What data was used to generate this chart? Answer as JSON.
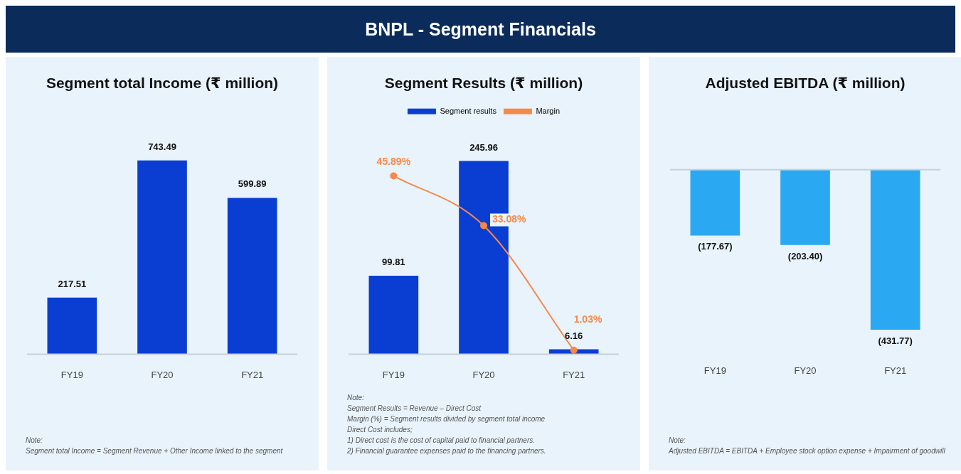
{
  "chart_data": [
    {
      "type": "other",
      "title": "BNPL - Segment Financials"
    },
    {
      "type": "bar",
      "title": "Segment total Income (₹ million)",
      "categories": [
        "FY19",
        "FY20",
        "FY21"
      ],
      "values": [
        217.51,
        743.49,
        599.89
      ],
      "color": "#0a3ed2",
      "data_labels": true,
      "legend": false,
      "annotations": [
        "Note:",
        "Segment total Income =  Segment Revenue + Other Income linked to the segment"
      ]
    },
    {
      "type": "bar",
      "title": "Segment Results (₹ million)",
      "categories": [
        "FY19",
        "FY20",
        "FY21"
      ],
      "legend": "top",
      "series": [
        {
          "name": "Segment results",
          "type": "bar",
          "color": "#0a3ed2",
          "values": [
            99.81,
            245.96,
            6.16
          ],
          "value_labels": [
            "99.81",
            "245.96",
            "6.16"
          ]
        },
        {
          "name": "Margin",
          "type": "line",
          "axis": "y2",
          "color": "#f5894a",
          "values": [
            45.89,
            33.08,
            1.03
          ],
          "value_labels": [
            "45.89%",
            "33.08%",
            "1.03%"
          ],
          "marker": "circle"
        }
      ],
      "annotations": [
        "Note:",
        "Segment Results =  Revenue – Direct Cost",
        "Margin (%) = Segment results divided by segment total income",
        "Direct Cost includes;",
        "1)  Direct cost is the cost of capital paid to financial partners.",
        "2)  Financial guarantee expenses paid to the financing partners."
      ]
    },
    {
      "type": "bar",
      "title": "Adjusted EBITDA (₹ million)",
      "categories": [
        "FY19",
        "FY20",
        "FY21"
      ],
      "values": [
        -177.67,
        -203.4,
        -431.77
      ],
      "value_labels": [
        "(177.67)",
        "(203.40)",
        "(431.77)"
      ],
      "color": "#2aa8f2",
      "legend": false,
      "annotations": [
        "Note:",
        "Adjusted EBITDA =  EBITDA + Employee stock option expense + Impairment of goodwill"
      ]
    }
  ]
}
